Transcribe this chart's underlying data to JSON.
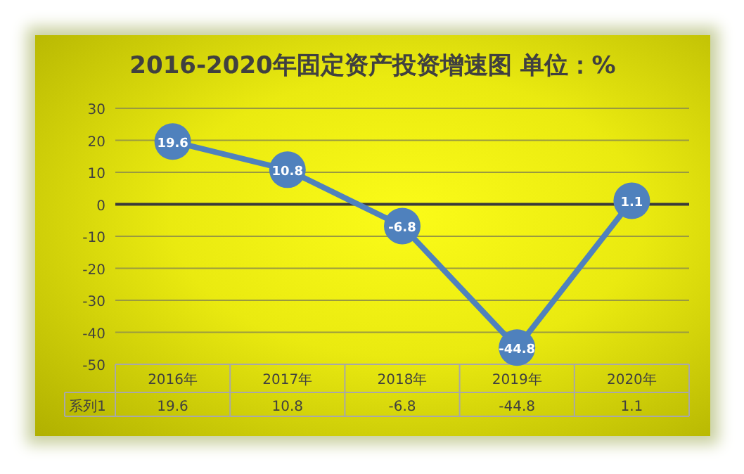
{
  "chart_data": {
    "type": "line",
    "title": "2016-2020年固定资产投资增速图  单位：%",
    "categories": [
      "2016年",
      "2017年",
      "2018年",
      "2019年",
      "2020年"
    ],
    "series": [
      {
        "name": "系列1",
        "color": "#4f81bd",
        "values": [
          19.6,
          10.8,
          -6.8,
          -44.8,
          1.1
        ]
      }
    ],
    "annotations": [
      "19.6",
      "10.8",
      "-6.8",
      "-44.8",
      "1.1"
    ],
    "ylim": [
      -50,
      30
    ],
    "yticks": [
      -50,
      -40,
      -30,
      -20,
      -10,
      0,
      10,
      20,
      30
    ],
    "grid": "y",
    "marker": "circle",
    "line_style": "solid",
    "data_labels": true,
    "legend": false
  }
}
